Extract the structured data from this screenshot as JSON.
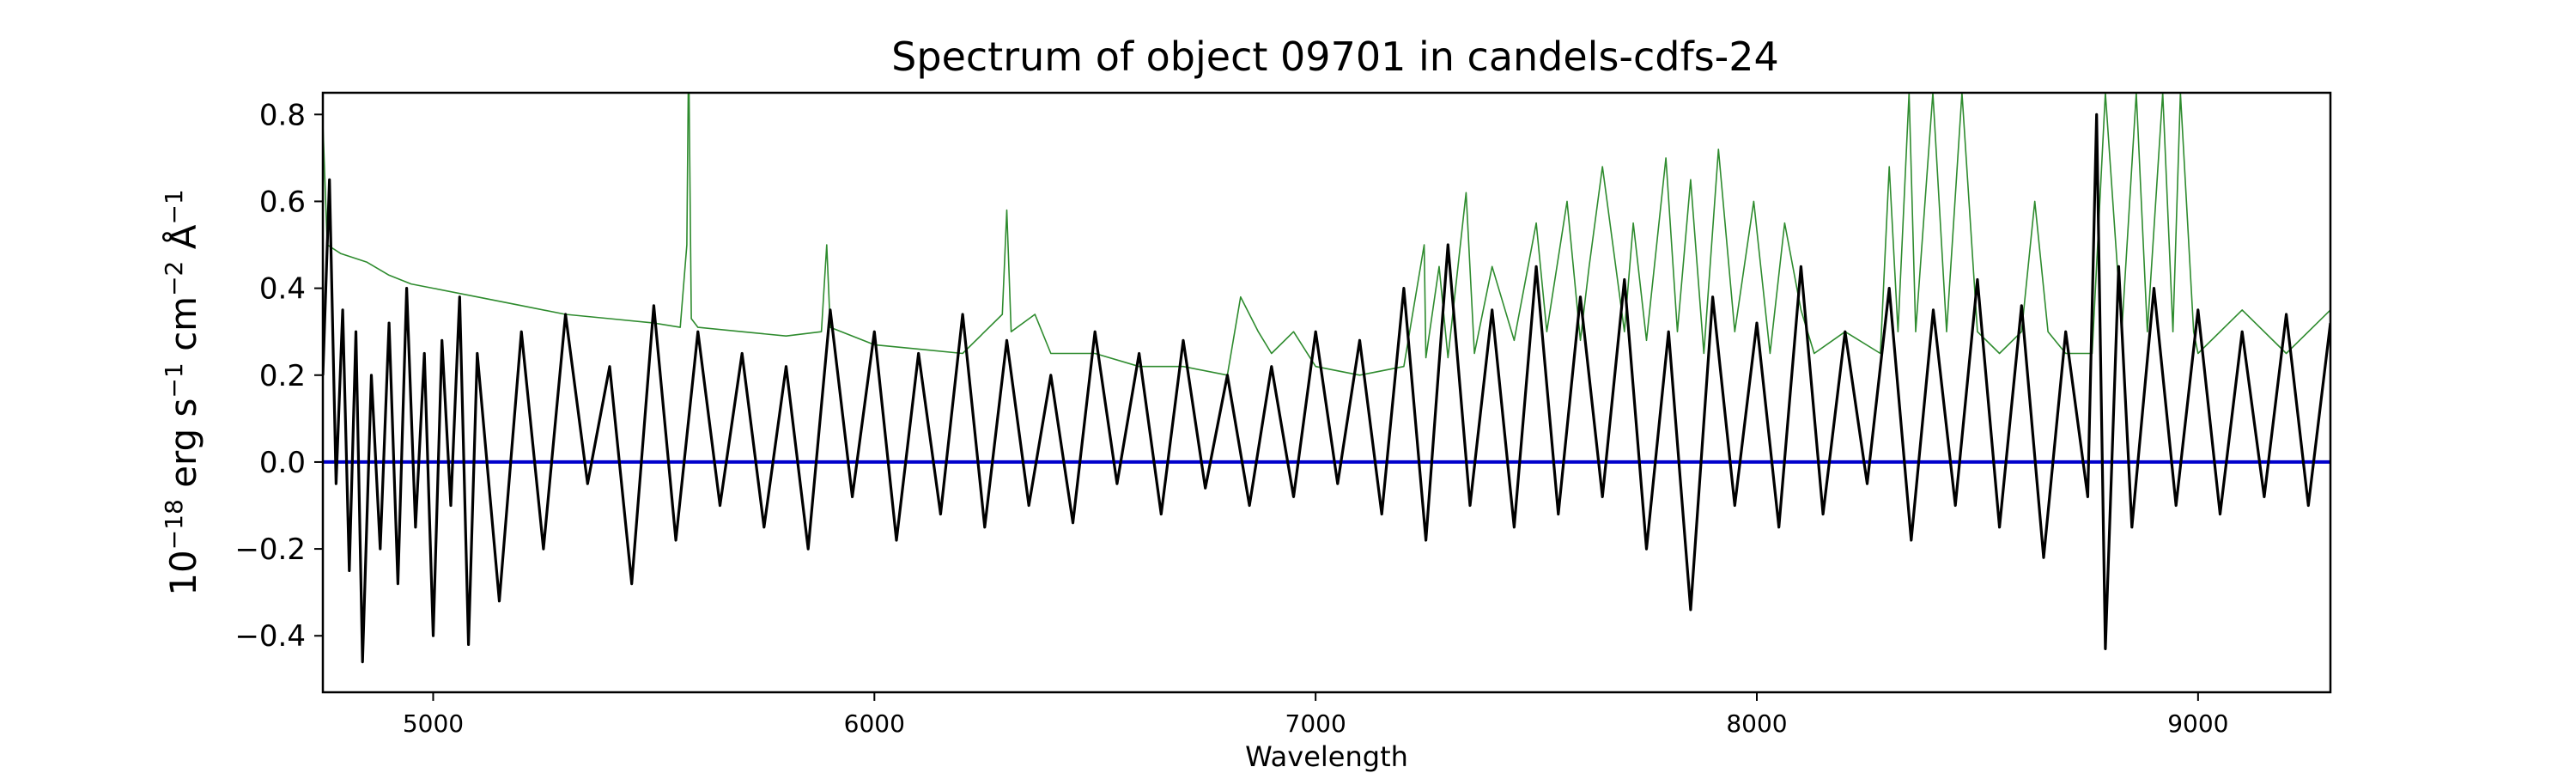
{
  "chart_data": {
    "type": "line",
    "title": "Spectrum of object 09701 in candels-cdfs-24",
    "xlabel": "Wavelength",
    "ylabel": {
      "prefix": "10",
      "exp1": "−18",
      "erg": " erg s",
      "exp2": "−1",
      "cm": " cm",
      "exp3": "−2",
      "ang": " Å",
      "exp4": "−1"
    },
    "xlim": [
      4750,
      9300
    ],
    "ylim": [
      -0.53,
      0.85
    ],
    "xticks": [
      5000,
      6000,
      7000,
      8000,
      9000
    ],
    "xtick_labels": [
      "5000",
      "6000",
      "7000",
      "8000",
      "9000"
    ],
    "yticks": [
      -0.4,
      -0.2,
      0.0,
      0.2,
      0.4,
      0.6,
      0.8
    ],
    "ytick_labels": [
      "−0.4",
      "−0.2",
      "0.0",
      "0.2",
      "0.4",
      "0.6",
      "0.8"
    ],
    "grid": false,
    "series": [
      {
        "role": "sky",
        "color": "#2e8b2e",
        "x": [
          4750,
          4760,
          4790,
          4850,
          4900,
          4950,
          5000,
          5100,
          5200,
          5300,
          5400,
          5500,
          5560,
          5575,
          5578,
          5580,
          5585,
          5600,
          5700,
          5800,
          5880,
          5892,
          5900,
          6000,
          6100,
          6200,
          6290,
          6300,
          6310,
          6364,
          6400,
          6500,
          6600,
          6700,
          6800,
          6830,
          6870,
          6900,
          6950,
          7000,
          7100,
          7200,
          7246,
          7250,
          7280,
          7300,
          7341,
          7360,
          7400,
          7450,
          7500,
          7524,
          7570,
          7600,
          7620,
          7650,
          7700,
          7720,
          7750,
          7794,
          7820,
          7850,
          7880,
          7913,
          7950,
          7993,
          8030,
          8063,
          8100,
          8130,
          8200,
          8280,
          8300,
          8320,
          8345,
          8360,
          8399,
          8430,
          8465,
          8500,
          8550,
          8600,
          8630,
          8660,
          8700,
          8760,
          8790,
          8827,
          8860,
          8885,
          8920,
          8943,
          8960,
          8990,
          9000,
          9100,
          9200,
          9300
        ],
        "y": [
          0.78,
          0.5,
          0.48,
          0.46,
          0.43,
          0.41,
          0.4,
          0.38,
          0.36,
          0.34,
          0.33,
          0.32,
          0.31,
          0.5,
          0.85,
          0.85,
          0.33,
          0.31,
          0.3,
          0.29,
          0.3,
          0.5,
          0.31,
          0.27,
          0.26,
          0.25,
          0.34,
          0.58,
          0.3,
          0.34,
          0.25,
          0.25,
          0.22,
          0.22,
          0.2,
          0.38,
          0.3,
          0.25,
          0.3,
          0.22,
          0.2,
          0.22,
          0.5,
          0.24,
          0.45,
          0.24,
          0.62,
          0.25,
          0.45,
          0.28,
          0.55,
          0.3,
          0.6,
          0.28,
          0.45,
          0.68,
          0.3,
          0.55,
          0.28,
          0.7,
          0.3,
          0.65,
          0.25,
          0.72,
          0.3,
          0.6,
          0.25,
          0.55,
          0.35,
          0.25,
          0.3,
          0.25,
          0.68,
          0.3,
          0.85,
          0.3,
          0.85,
          0.3,
          0.85,
          0.3,
          0.25,
          0.3,
          0.6,
          0.3,
          0.25,
          0.25,
          0.85,
          0.3,
          0.85,
          0.3,
          0.85,
          0.3,
          0.85,
          0.3,
          0.25,
          0.35,
          0.25,
          0.35
        ]
      },
      {
        "role": "zero-line",
        "color": "#0000cc",
        "x": [
          4750,
          9300
        ],
        "y": [
          0.0,
          0.0
        ]
      },
      {
        "role": "flux",
        "color": "#000000",
        "x": [
          4750,
          4765,
          4780,
          4795,
          4810,
          4825,
          4840,
          4860,
          4880,
          4900,
          4920,
          4940,
          4960,
          4980,
          5000,
          5020,
          5040,
          5060,
          5080,
          5100,
          5150,
          5200,
          5250,
          5300,
          5350,
          5400,
          5450,
          5500,
          5550,
          5600,
          5650,
          5700,
          5750,
          5800,
          5850,
          5900,
          5950,
          6000,
          6050,
          6100,
          6150,
          6200,
          6250,
          6300,
          6350,
          6400,
          6450,
          6500,
          6550,
          6600,
          6650,
          6700,
          6750,
          6800,
          6850,
          6900,
          6950,
          7000,
          7050,
          7100,
          7150,
          7200,
          7250,
          7300,
          7350,
          7400,
          7450,
          7500,
          7550,
          7600,
          7650,
          7700,
          7750,
          7800,
          7850,
          7900,
          7950,
          8000,
          8050,
          8100,
          8150,
          8200,
          8250,
          8300,
          8350,
          8400,
          8450,
          8500,
          8550,
          8600,
          8650,
          8700,
          8750,
          8770,
          8790,
          8820,
          8850,
          8900,
          8950,
          9000,
          9050,
          9100,
          9150,
          9200,
          9250,
          9300
        ],
        "y": [
          0.2,
          0.65,
          -0.05,
          0.35,
          -0.25,
          0.3,
          -0.46,
          0.2,
          -0.2,
          0.32,
          -0.28,
          0.4,
          -0.15,
          0.25,
          -0.4,
          0.28,
          -0.1,
          0.38,
          -0.42,
          0.25,
          -0.32,
          0.3,
          -0.2,
          0.34,
          -0.05,
          0.22,
          -0.28,
          0.36,
          -0.18,
          0.3,
          -0.1,
          0.25,
          -0.15,
          0.22,
          -0.2,
          0.35,
          -0.08,
          0.3,
          -0.18,
          0.25,
          -0.12,
          0.34,
          -0.15,
          0.28,
          -0.1,
          0.2,
          -0.14,
          0.3,
          -0.05,
          0.25,
          -0.12,
          0.28,
          -0.06,
          0.2,
          -0.1,
          0.22,
          -0.08,
          0.3,
          -0.05,
          0.28,
          -0.12,
          0.4,
          -0.18,
          0.5,
          -0.1,
          0.35,
          -0.15,
          0.45,
          -0.12,
          0.38,
          -0.08,
          0.42,
          -0.2,
          0.3,
          -0.34,
          0.38,
          -0.1,
          0.32,
          -0.15,
          0.45,
          -0.12,
          0.3,
          -0.05,
          0.4,
          -0.18,
          0.35,
          -0.1,
          0.42,
          -0.15,
          0.36,
          -0.22,
          0.3,
          -0.08,
          0.8,
          -0.43,
          0.45,
          -0.15,
          0.4,
          -0.1,
          0.35,
          -0.12,
          0.3,
          -0.08,
          0.34,
          -0.1,
          0.32
        ]
      }
    ]
  }
}
